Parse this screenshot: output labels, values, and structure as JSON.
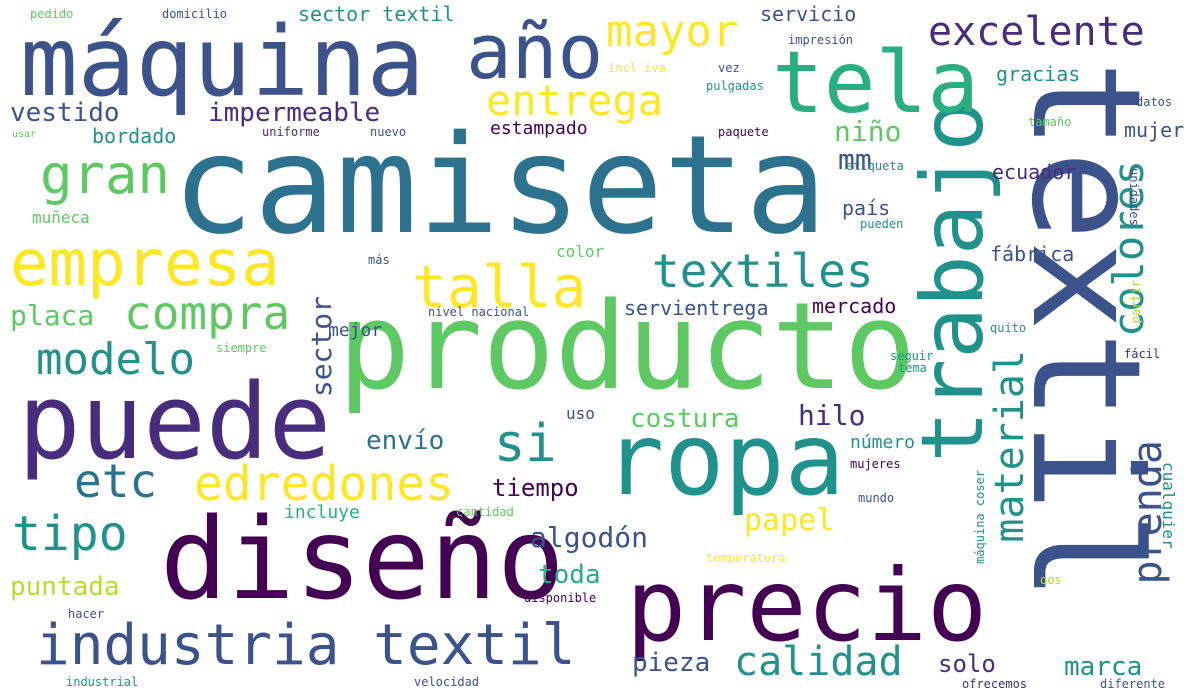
{
  "words": [
    {
      "text": "camiseta",
      "color": "#2c728e"
    },
    {
      "text": "producto",
      "color": "#5ec962"
    },
    {
      "text": "textil",
      "color": "#3b528b"
    },
    {
      "text": "máquina",
      "color": "#3b528b"
    },
    {
      "text": "puede",
      "color": "#472d7b"
    },
    {
      "text": "diseño",
      "color": "#440154"
    },
    {
      "text": "ropa",
      "color": "#21918c"
    },
    {
      "text": "precio",
      "color": "#440154"
    },
    {
      "text": "trabajo",
      "color": "#21918c"
    },
    {
      "text": "tela",
      "color": "#28ae80"
    },
    {
      "text": "año",
      "color": "#3b528b"
    },
    {
      "text": "empresa",
      "color": "#fde725"
    },
    {
      "text": "industria textil",
      "color": "#3b528b"
    },
    {
      "text": "gran",
      "color": "#5ec962"
    },
    {
      "text": "talla",
      "color": "#fde725"
    },
    {
      "text": "textiles",
      "color": "#21918c"
    },
    {
      "text": "compra",
      "color": "#5ec962"
    },
    {
      "text": "modelo",
      "color": "#21918c"
    },
    {
      "text": "etc",
      "color": "#2c728e"
    },
    {
      "text": "edredones",
      "color": "#fde725"
    },
    {
      "text": "si",
      "color": "#21918c"
    },
    {
      "text": "tipo",
      "color": "#21918c"
    },
    {
      "text": "calidad",
      "color": "#21918c"
    },
    {
      "text": "mayor",
      "color": "#fde725"
    },
    {
      "text": "entrega",
      "color": "#fde725"
    },
    {
      "text": "excelente",
      "color": "#472d7b"
    },
    {
      "text": "colores",
      "color": "#21918c"
    },
    {
      "text": "material",
      "color": "#21918c"
    },
    {
      "text": "prenda",
      "color": "#3b528b"
    },
    {
      "text": "vestido",
      "color": "#3b528b"
    },
    {
      "text": "impermeable",
      "color": "#472d7b"
    },
    {
      "text": "algodón",
      "color": "#3b528b"
    },
    {
      "text": "papel",
      "color": "#fde725"
    },
    {
      "text": "costura",
      "color": "#5ec962"
    },
    {
      "text": "envío",
      "color": "#2c728e"
    },
    {
      "text": "sector",
      "color": "#3b528b"
    },
    {
      "text": "hilo",
      "color": "#472d7b"
    },
    {
      "text": "niño",
      "color": "#5ec962"
    },
    {
      "text": "mm",
      "color": "#3b528b"
    },
    {
      "text": "tiempo",
      "color": "#440154"
    },
    {
      "text": "puntada",
      "color": "#b5de2b"
    },
    {
      "text": "toda",
      "color": "#28ae80"
    },
    {
      "text": "pieza",
      "color": "#3b528b"
    },
    {
      "text": "marca",
      "color": "#21918c"
    },
    {
      "text": "solo",
      "color": "#472d7b"
    },
    {
      "text": "placa",
      "color": "#5ec962"
    },
    {
      "text": "mejor",
      "color": "#3b528b"
    },
    {
      "text": "servientrega",
      "color": "#3b528b"
    },
    {
      "text": "mercado",
      "color": "#440154"
    },
    {
      "text": "país",
      "color": "#3b528b"
    },
    {
      "text": "fábrica",
      "color": "#3b528b"
    },
    {
      "text": "ecuador",
      "color": "#472d7b"
    },
    {
      "text": "gracias",
      "color": "#21918c"
    },
    {
      "text": "mujer",
      "color": "#3b528b"
    },
    {
      "text": "estampado",
      "color": "#440154"
    },
    {
      "text": "bordado",
      "color": "#21918c"
    },
    {
      "text": "sector textil",
      "color": "#21918c"
    },
    {
      "text": "servicio",
      "color": "#3b528b"
    },
    {
      "text": "incluye",
      "color": "#28ae80"
    },
    {
      "text": "número",
      "color": "#21918c"
    },
    {
      "text": "cualquier",
      "color": "#21918c"
    },
    {
      "text": "muñeca",
      "color": "#5ec962"
    },
    {
      "text": "color",
      "color": "#5ec962"
    },
    {
      "text": "uso",
      "color": "#3b528b"
    },
    {
      "text": "pedido",
      "color": "#5ec962"
    },
    {
      "text": "domicilio",
      "color": "#3b528b"
    },
    {
      "text": "impresión",
      "color": "#3b528b"
    },
    {
      "text": "incl iva",
      "color": "#fde725"
    },
    {
      "text": "vez",
      "color": "#3b528b"
    },
    {
      "text": "pulgadas",
      "color": "#21918c"
    },
    {
      "text": "datos",
      "color": "#3b528b"
    },
    {
      "text": "paquete",
      "color": "#440154"
    },
    {
      "text": "etiqueta",
      "color": "#21918c"
    },
    {
      "text": "tamaño",
      "color": "#5ec962"
    },
    {
      "text": "uniforme",
      "color": "#472d7b"
    },
    {
      "text": "nuevo",
      "color": "#3b528b"
    },
    {
      "text": "usar",
      "color": "#5ec962"
    },
    {
      "text": "pueden",
      "color": "#21918c"
    },
    {
      "text": "unidades",
      "color": "#3b528b"
    },
    {
      "text": "partir",
      "color": "#b5de2b"
    },
    {
      "text": "más",
      "color": "#3b528b"
    },
    {
      "text": "nivel nacional",
      "color": "#3b528b"
    },
    {
      "text": "quito",
      "color": "#21918c"
    },
    {
      "text": "siempre",
      "color": "#5ec962"
    },
    {
      "text": "seguir",
      "color": "#21918c"
    },
    {
      "text": "tema",
      "color": "#21918c"
    },
    {
      "text": "fácil",
      "color": "#472d7b"
    },
    {
      "text": "mujeres",
      "color": "#440154"
    },
    {
      "text": "máquina coser",
      "color": "#21918c"
    },
    {
      "text": "mundo",
      "color": "#3b528b"
    },
    {
      "text": "temperatura",
      "color": "#fde725"
    },
    {
      "text": "cantidad",
      "color": "#5ec962"
    },
    {
      "text": "disponible",
      "color": "#440154"
    },
    {
      "text": "hacer",
      "color": "#3b528b"
    },
    {
      "text": "dos",
      "color": "#b5de2b"
    },
    {
      "text": "industrial",
      "color": "#21918c"
    },
    {
      "text": "velocidad",
      "color": "#3b528b"
    },
    {
      "text": "ofrecemos",
      "color": "#472d7b"
    },
    {
      "text": "diferente",
      "color": "#3b528b"
    }
  ]
}
